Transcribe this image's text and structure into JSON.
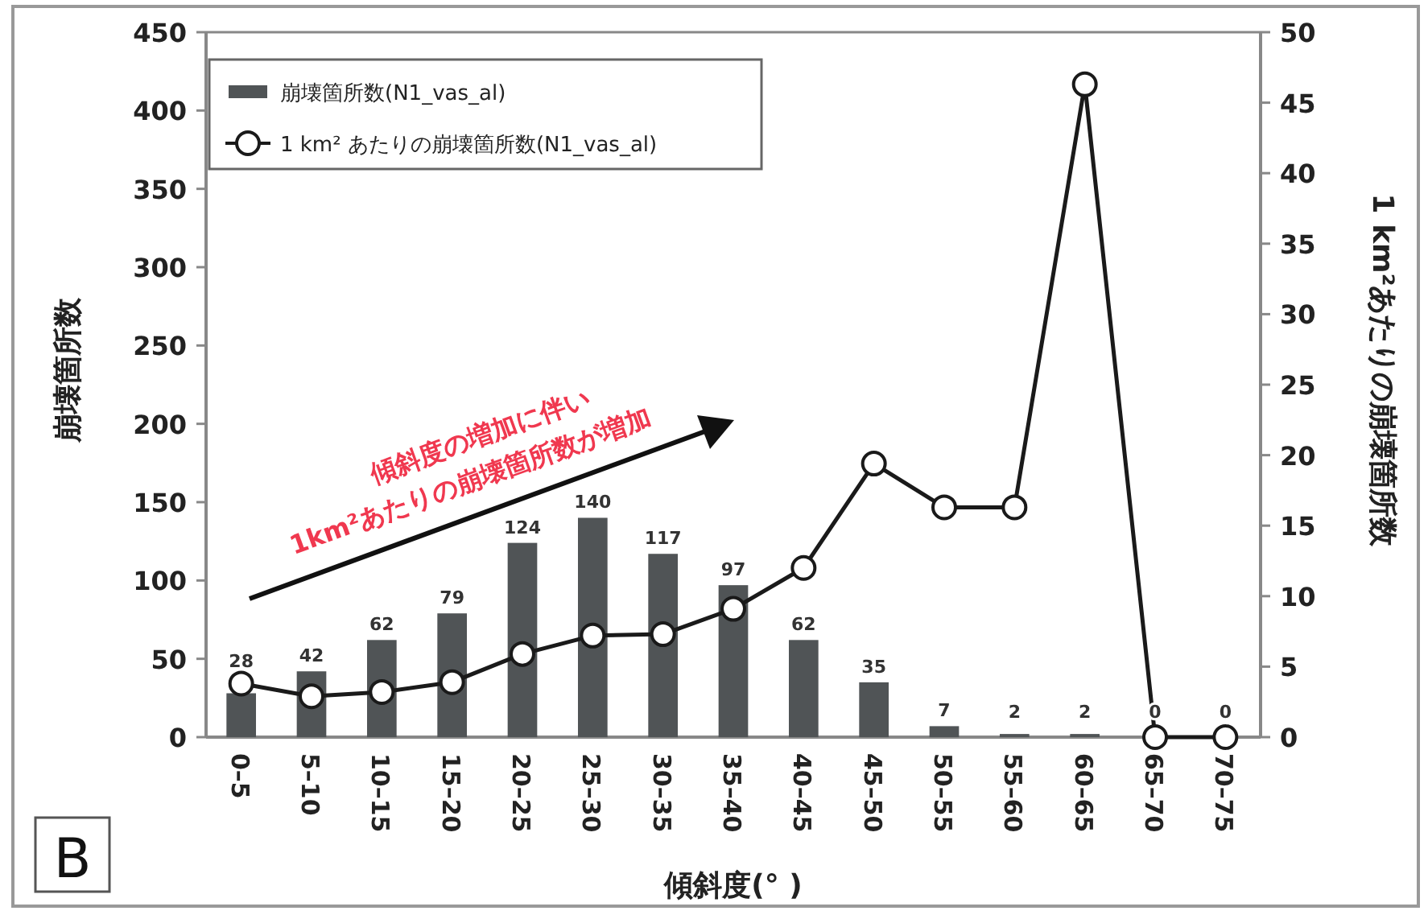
{
  "chart_data": {
    "type": "bar",
    "xlabel": "傾斜度(° )",
    "ylabel": "崩壊箇所数",
    "y2label": "1 km²あたりの崩壊箇所数",
    "categories": [
      "0–5",
      "5–10",
      "10–15",
      "15–20",
      "20–25",
      "25–30",
      "30–35",
      "35–40",
      "40–45",
      "45–50",
      "50–55",
      "55–60",
      "60–65",
      "65–70",
      "70–75"
    ],
    "series": [
      {
        "name": "崩壊箇所数(N1_vas_al)",
        "color": "#505456",
        "values": [
          28,
          42,
          62,
          79,
          124,
          140,
          117,
          97,
          62,
          35,
          7,
          2,
          2,
          0,
          0
        ],
        "value_labels": [
          "28",
          "42",
          "62",
          "79",
          "124",
          "140",
          "117",
          "97",
          "62",
          "35",
          "7",
          "2",
          "2",
          "0",
          "0"
        ]
      },
      {
        "name": "1 km² あたりの崩壊箇所数(N1_vas_al)",
        "type": "line",
        "axis": "y2",
        "color": "#1a1a1a",
        "values": [
          3.8,
          2.9,
          3.2,
          3.9,
          5.9,
          7.2,
          7.3,
          9.1,
          12.0,
          19.4,
          16.3,
          16.3,
          46.3,
          0,
          0
        ]
      }
    ],
    "ylim": [
      0,
      450
    ],
    "yticks": [
      0,
      50,
      100,
      150,
      200,
      250,
      300,
      350,
      400,
      450
    ],
    "y2lim": [
      0,
      50
    ],
    "y2ticks": [
      0,
      5,
      10,
      15,
      20,
      25,
      30,
      35,
      40,
      45,
      50
    ],
    "marker": "circle",
    "line_style": "solid",
    "grid": false,
    "legend": "top left",
    "annotations": [
      "B",
      "傾斜度の増加に伴い",
      "1km²あたりの崩壊箇所数が増加"
    ]
  }
}
